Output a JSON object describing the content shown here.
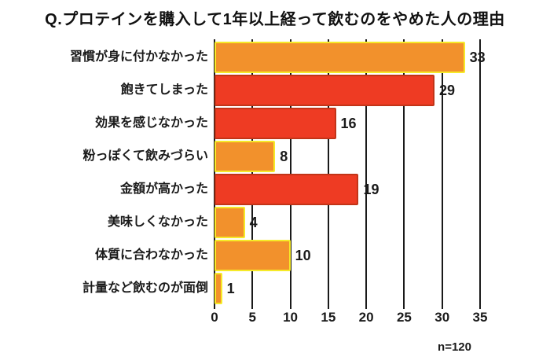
{
  "title": "Q.プロテインを購入して1年以上経って飲むのをやめた人の理由",
  "sample_note": "n=120",
  "colors": {
    "background": "#FFFFFF",
    "text": "#1A1A1A",
    "grid": "#1A1A1A",
    "orange_fill": "#F2912C",
    "orange_border": "#F6EA28",
    "red_fill": "#EE3B23",
    "red_border": "#C23418"
  },
  "chart_data": {
    "type": "bar",
    "orientation": "horizontal",
    "title": "Q.プロテインを購入して1年以上経って飲むのをやめた人の理由",
    "categories": [
      "習慣が身に付かなかった",
      "飽きてしまった",
      "効果を感じなかった",
      "粉っぽくて飲みづらい",
      "金額が高かった",
      "美味しくなかった",
      "体質に合わなかった",
      "計量など飲むのが面倒"
    ],
    "values": [
      33,
      29,
      16,
      8,
      19,
      4,
      10,
      1
    ],
    "bar_colors": [
      "orange",
      "red",
      "red",
      "orange",
      "red",
      "orange",
      "orange",
      "orange"
    ],
    "value_labels": [
      "33",
      "29",
      "16",
      "8",
      "19",
      "4",
      "10",
      "1"
    ],
    "x_ticks": [
      0,
      5,
      10,
      15,
      20,
      25,
      30,
      35
    ],
    "xlim": [
      0,
      35
    ],
    "grid": true,
    "legend": false,
    "annotation": "n=120"
  }
}
